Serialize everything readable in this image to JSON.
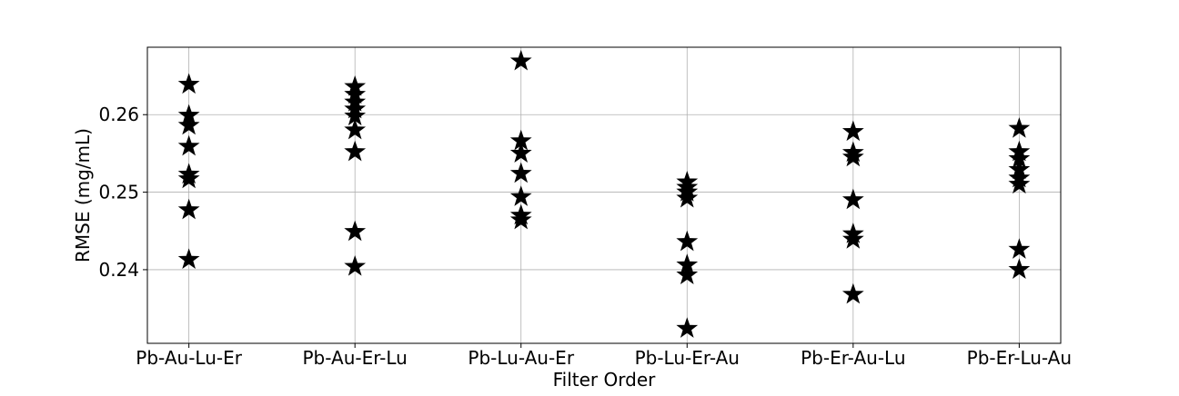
{
  "chart_data": {
    "type": "scatter",
    "x_label": "Filter Order",
    "y_label": "RMSE (mg/mL)",
    "categories": [
      "Pb-Au-Lu-Er",
      "Pb-Au-Er-Lu",
      "Pb-Lu-Au-Er",
      "Pb-Lu-Er-Au",
      "Pb-Er-Au-Lu",
      "Pb-Er-Lu-Au"
    ],
    "values": [
      [
        0.2639,
        0.2599,
        0.2586,
        0.2559,
        0.2523,
        0.2517,
        0.2477,
        0.2413
      ],
      [
        0.2636,
        0.2626,
        0.2616,
        0.2607,
        0.2598,
        0.258,
        0.2552,
        0.2449,
        0.2404
      ],
      [
        0.2669,
        0.2566,
        0.255,
        0.2524,
        0.2494,
        0.247,
        0.2464
      ],
      [
        0.2513,
        0.2506,
        0.25,
        0.2492,
        0.2436,
        0.2406,
        0.2393,
        0.2324
      ],
      [
        0.2578,
        0.2551,
        0.2545,
        0.249,
        0.2446,
        0.2439,
        0.2368
      ],
      [
        0.2582,
        0.2552,
        0.2543,
        0.2529,
        0.2518,
        0.251,
        0.2426,
        0.24
      ]
    ],
    "color": "#000000",
    "marker": "star",
    "ylim": [
      0.2305,
      0.2687
    ],
    "yticks": [
      0.24,
      0.25,
      0.26
    ],
    "grid": true
  }
}
